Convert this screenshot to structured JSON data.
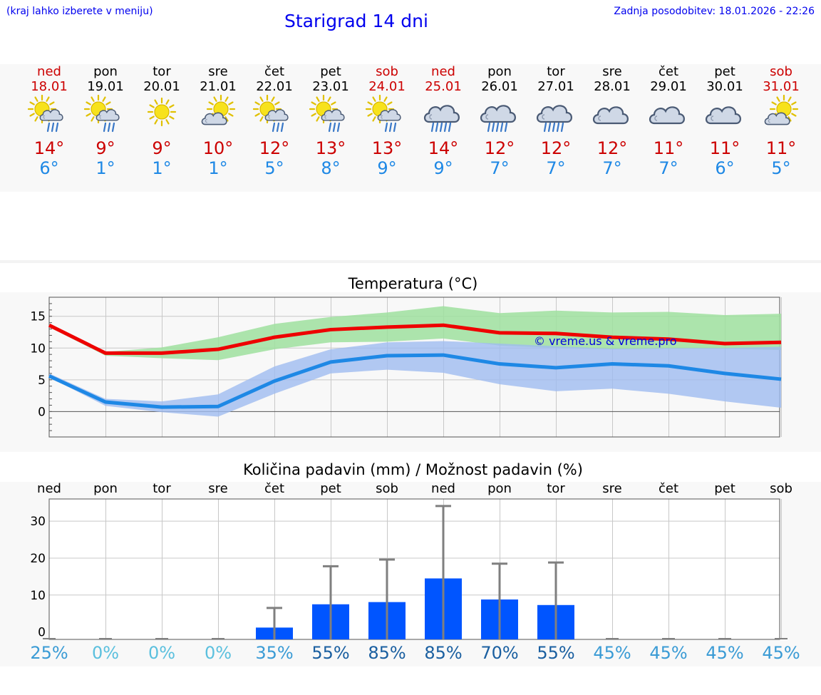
{
  "header": {
    "note": "(kraj lahko izberete v meniju)",
    "title": "Starigrad 14 dni",
    "updated": "Zadnja posodobitev: 18.01.2026 - 22:26"
  },
  "days": [
    {
      "name": "ned",
      "date": "18.01",
      "weekend": true,
      "icon": "sun-cloud-rain-icon",
      "max": "14°",
      "min": "6°"
    },
    {
      "name": "pon",
      "date": "19.01",
      "weekend": false,
      "icon": "sun-cloud-rain-icon",
      "max": "9°",
      "min": "1°"
    },
    {
      "name": "tor",
      "date": "20.01",
      "weekend": false,
      "icon": "sun-icon",
      "max": "9°",
      "min": "1°"
    },
    {
      "name": "sre",
      "date": "21.01",
      "weekend": false,
      "icon": "sun-cloud-icon",
      "max": "10°",
      "min": "1°"
    },
    {
      "name": "čet",
      "date": "22.01",
      "weekend": false,
      "icon": "sun-cloud-rain-icon",
      "max": "12°",
      "min": "5°"
    },
    {
      "name": "pet",
      "date": "23.01",
      "weekend": false,
      "icon": "sun-cloud-rain-icon",
      "max": "13°",
      "min": "8°"
    },
    {
      "name": "sob",
      "date": "24.01",
      "weekend": true,
      "icon": "sun-cloud-rain-icon",
      "max": "13°",
      "min": "9°"
    },
    {
      "name": "ned",
      "date": "25.01",
      "weekend": true,
      "icon": "cloud-rain-icon",
      "max": "14°",
      "min": "9°"
    },
    {
      "name": "pon",
      "date": "26.01",
      "weekend": false,
      "icon": "cloud-rain-icon",
      "max": "12°",
      "min": "7°"
    },
    {
      "name": "tor",
      "date": "27.01",
      "weekend": false,
      "icon": "cloud-rain-icon",
      "max": "12°",
      "min": "7°"
    },
    {
      "name": "sre",
      "date": "28.01",
      "weekend": false,
      "icon": "cloud-icon",
      "max": "12°",
      "min": "7°"
    },
    {
      "name": "čet",
      "date": "29.01",
      "weekend": false,
      "icon": "cloud-icon",
      "max": "11°",
      "min": "7°"
    },
    {
      "name": "pet",
      "date": "30.01",
      "weekend": false,
      "icon": "cloud-icon",
      "max": "11°",
      "min": "6°"
    },
    {
      "name": "sob",
      "date": "31.01",
      "weekend": true,
      "icon": "sun-cloud-icon",
      "max": "11°",
      "min": "5°"
    }
  ],
  "colors": {
    "max_line": "#ee0000",
    "min_line": "#1e88e5",
    "max_band": "#9fe09f",
    "min_band": "#9fbcf0",
    "bar": "#0055ff",
    "whisker": "#7f7f7f",
    "watermark": "#0000dd"
  },
  "chart_data": [
    {
      "type": "line",
      "title": "Temperatura (°C)",
      "x": [
        "ned",
        "pon",
        "tor",
        "sre",
        "čet",
        "pet",
        "sob",
        "ned",
        "pon",
        "tor",
        "sre",
        "čet",
        "pet",
        "sob"
      ],
      "yticks": [
        "15",
        "10",
        "5",
        "0"
      ],
      "ylim": [
        -4,
        18
      ],
      "watermark": "© vreme.us & vreme.pro",
      "series": [
        {
          "name": "max",
          "values": [
            13.6,
            9.2,
            9.2,
            9.8,
            11.7,
            12.9,
            13.3,
            13.6,
            12.4,
            12.3,
            11.7,
            11.4,
            10.7,
            10.9
          ],
          "band_low": [
            13.3,
            8.8,
            8.4,
            8.1,
            9.8,
            10.9,
            11.0,
            11.5,
            10.4,
            10.0,
            9.8,
            9.9,
            9.9,
            9.7
          ],
          "band_high": [
            13.8,
            9.4,
            10.1,
            11.7,
            13.8,
            14.9,
            15.6,
            16.6,
            15.5,
            15.9,
            15.6,
            15.7,
            15.2,
            15.4
          ]
        },
        {
          "name": "min",
          "values": [
            5.6,
            1.5,
            0.7,
            0.8,
            4.8,
            7.8,
            8.8,
            8.9,
            7.5,
            6.9,
            7.5,
            7.2,
            6.0,
            5.1
          ],
          "band_low": [
            5.4,
            0.9,
            -0.1,
            -0.8,
            2.8,
            6.0,
            6.6,
            6.1,
            4.3,
            3.2,
            3.6,
            2.8,
            1.6,
            0.6
          ],
          "band_high": [
            6.0,
            2.0,
            1.6,
            2.7,
            7.1,
            9.8,
            10.9,
            11.1,
            10.7,
            10.3,
            9.9,
            10.0,
            10.0,
            10.2
          ]
        }
      ]
    },
    {
      "type": "bar",
      "title": "Količina padavin (mm) / Možnost padavin (%)",
      "categories": [
        "ned",
        "pon",
        "tor",
        "sre",
        "čet",
        "pet",
        "sob",
        "ned",
        "pon",
        "tor",
        "sre",
        "čet",
        "pet",
        "sob"
      ],
      "yticks": [
        "30",
        "20",
        "10",
        "0"
      ],
      "ylim": [
        -2,
        36
      ],
      "values": [
        0,
        0,
        0,
        0,
        1.2,
        7.5,
        8.1,
        14.5,
        8.8,
        7.3,
        0,
        0,
        0,
        0
      ],
      "whisker_high": [
        0,
        0,
        0,
        0,
        6.5,
        17.8,
        19.6,
        34.1,
        18.5,
        18.8,
        0,
        0,
        0,
        0
      ],
      "probability": [
        "25%",
        "0%",
        "0%",
        "0%",
        "35%",
        "55%",
        "85%",
        "85%",
        "70%",
        "55%",
        "45%",
        "45%",
        "45%",
        "45%"
      ],
      "probability_colors": [
        "#3a9bd5",
        "#5bc0de",
        "#5bc0de",
        "#5bc0de",
        "#3a9bd5",
        "#1a5fa0",
        "#1a5fa0",
        "#1a5fa0",
        "#1a5fa0",
        "#1a5fa0",
        "#3a9bd5",
        "#3a9bd5",
        "#3a9bd5",
        "#3a9bd5"
      ]
    }
  ]
}
